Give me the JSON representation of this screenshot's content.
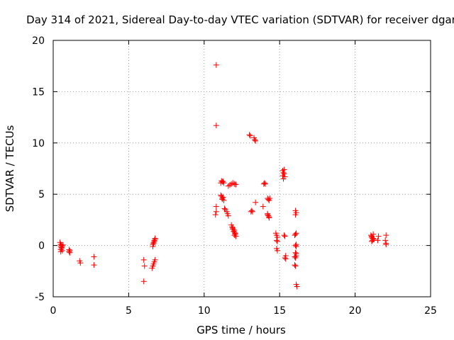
{
  "chart_data": {
    "type": "scatter",
    "title": "Day 314 of 2021, Sidereal Day-to-day VTEC variation (SDTVAR) for receiver dgar",
    "xlabel": "GPS time / hours",
    "ylabel": "SDTVAR / TECUs",
    "xlim": [
      0,
      25
    ],
    "ylim": [
      -5,
      20
    ],
    "xticks": [
      "0",
      "5",
      "10",
      "15",
      "20",
      "25"
    ],
    "yticks": [
      "-5",
      "0",
      "5",
      "10",
      "15",
      "20"
    ],
    "grid": true,
    "marker": "+",
    "color": "#ff0000",
    "series": [
      {
        "name": "SDTVAR",
        "x": [
          0.45,
          0.5,
          0.5,
          0.55,
          0.55,
          0.6,
          0.5,
          0.55,
          0.5,
          0.6,
          0.65,
          0.5,
          1.05,
          1.05,
          1.1,
          1.1,
          1.75,
          1.8,
          2.7,
          2.7,
          6.0,
          6.05,
          6.0,
          6.55,
          6.6,
          6.65,
          6.7,
          6.75,
          6.6,
          6.65,
          6.7,
          6.75,
          6.6,
          6.65,
          6.7,
          6.75,
          10.8,
          10.8,
          10.8,
          10.75,
          10.8,
          11.1,
          11.15,
          11.2,
          11.25,
          11.3,
          11.15,
          11.2,
          11.25,
          11.1,
          11.2,
          11.3,
          11.35,
          11.4,
          11.5,
          11.55,
          11.6,
          11.6,
          11.7,
          11.8,
          11.9,
          12.0,
          12.1,
          11.8,
          11.85,
          11.9,
          11.95,
          12.0,
          12.05,
          11.9,
          12.0,
          12.05,
          12.1,
          12.0,
          12.05,
          13.0,
          13.05,
          13.1,
          13.15,
          13.2,
          13.3,
          13.35,
          13.4,
          13.4,
          13.9,
          14.0,
          14.05,
          13.95,
          14.2,
          14.25,
          14.3,
          14.35,
          14.2,
          14.25,
          14.3,
          14.2,
          14.3,
          14.75,
          14.8,
          14.85,
          14.8,
          14.85,
          14.8,
          14.85,
          15.2,
          15.25,
          15.3,
          15.35,
          15.2,
          15.25,
          15.3,
          15.3,
          15.35,
          15.4,
          15.35,
          15.4,
          16.0,
          16.05,
          16.1,
          16.05,
          16.1,
          16.0,
          16.05,
          16.1,
          16.05,
          16.1,
          16.05,
          16.1,
          16.0,
          16.05,
          16.1,
          16.15,
          16.05,
          16.1,
          21.05,
          21.1,
          21.15,
          21.2,
          21.1,
          21.15,
          21.2,
          21.25,
          21.1,
          21.2,
          21.5,
          21.55,
          22.0,
          22.05,
          22.05,
          22.05
        ],
        "y": [
          0.3,
          0.1,
          -0.1,
          0.0,
          -0.3,
          -0.5,
          -0.6,
          -0.2,
          0.1,
          -0.1,
          0.05,
          -0.4,
          -0.4,
          -0.6,
          -0.7,
          -0.5,
          -1.5,
          -1.7,
          -1.1,
          -1.9,
          -1.4,
          -2.0,
          -3.5,
          -2.2,
          -2.0,
          -1.8,
          -1.6,
          -1.4,
          0.1,
          0.3,
          0.5,
          0.7,
          -0.1,
          0.2,
          0.4,
          0.6,
          17.6,
          11.7,
          3.8,
          3.0,
          3.3,
          6.1,
          6.3,
          6.2,
          6.25,
          6.1,
          4.8,
          4.6,
          4.7,
          4.9,
          4.5,
          4.4,
          3.6,
          3.5,
          3.3,
          3.1,
          2.9,
          5.8,
          5.9,
          6.0,
          6.1,
          6.0,
          5.95,
          2.0,
          1.8,
          1.6,
          1.4,
          1.3,
          1.2,
          1.7,
          1.5,
          1.1,
          0.9,
          1.0,
          1.2,
          10.8,
          10.7,
          3.3,
          3.4,
          3.3,
          10.5,
          10.3,
          10.2,
          4.2,
          3.8,
          6.1,
          6.0,
          6.0,
          4.6,
          4.5,
          4.4,
          4.6,
          3.1,
          2.9,
          2.8,
          3.0,
          2.7,
          1.2,
          1.0,
          0.8,
          0.5,
          0.4,
          -0.3,
          -0.5,
          7.3,
          7.1,
          7.0,
          6.7,
          6.8,
          6.5,
          7.4,
          1.0,
          0.9,
          -1.0,
          -1.2,
          -1.3,
          -1.1,
          3.4,
          3.2,
          3.0,
          1.2,
          1.0,
          1.1,
          0.1,
          0.0,
          -0.1,
          -0.7,
          -0.8,
          -1.9,
          -2.0,
          -3.8,
          -4.0,
          -1.2,
          -1.0,
          1.0,
          0.8,
          0.7,
          0.6,
          0.9,
          0.5,
          1.1,
          0.6,
          0.4,
          0.7,
          0.5,
          0.9,
          0.5,
          1.0,
          0.2,
          0.1
        ]
      }
    ]
  }
}
